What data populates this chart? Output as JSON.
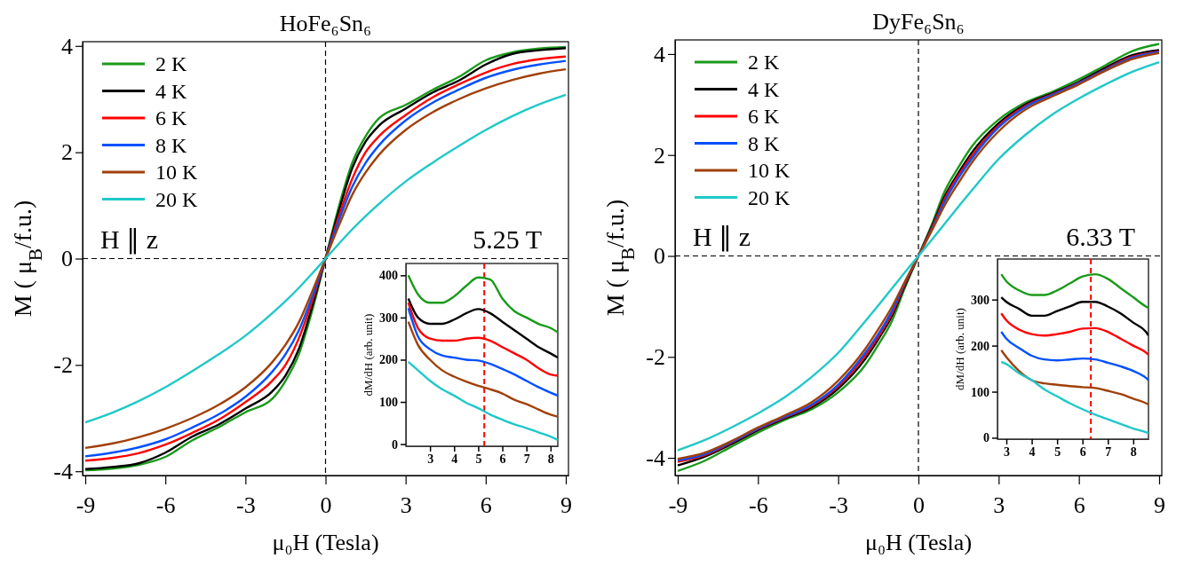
{
  "chart_data": [
    {
      "type": "line",
      "title": "HoFe₆Sn₆",
      "xlabel": "μ₀H (Tesla)",
      "ylabel": "M ( μ$_{B}$/f.u.)",
      "xlim": [
        -9.1,
        9.1
      ],
      "ylim": [
        -4.08,
        4.08
      ],
      "xticks": [
        -9,
        -6,
        -3,
        0,
        3,
        6,
        9
      ],
      "yticks": [
        -4,
        -2,
        0,
        2,
        4
      ],
      "legend": "top left",
      "annotations": [
        "H ∥ z",
        "5.25 T"
      ],
      "ref_lines": [
        {
          "axis": "x",
          "value": 0,
          "color": "#000000",
          "line_style": "dashed"
        },
        {
          "axis": "y",
          "value": 0,
          "color": "#000000",
          "line_style": "dashed"
        }
      ],
      "x": [
        -9,
        -8,
        -7,
        -6,
        -5,
        -4,
        -3,
        -2,
        -1.5,
        -1,
        -0.5,
        0,
        0.5,
        1,
        1.5,
        2,
        3,
        4,
        5,
        6,
        7,
        8,
        9
      ],
      "series": [
        {
          "name": "2 K",
          "color": "#1a9a1a",
          "values": [
            -3.98,
            -3.95,
            -3.88,
            -3.73,
            -3.42,
            -3.17,
            -2.89,
            -2.64,
            -2.3,
            -1.8,
            -0.98,
            0,
            0.98,
            1.8,
            2.3,
            2.64,
            2.89,
            3.17,
            3.42,
            3.73,
            3.88,
            3.95,
            3.98
          ]
        },
        {
          "name": "4 K",
          "color": "#000000",
          "values": [
            -3.96,
            -3.92,
            -3.85,
            -3.65,
            -3.35,
            -3.12,
            -2.82,
            -2.5,
            -2.2,
            -1.7,
            -0.9,
            0,
            0.9,
            1.7,
            2.2,
            2.5,
            2.82,
            3.12,
            3.35,
            3.65,
            3.85,
            3.92,
            3.96
          ]
        },
        {
          "name": "6 K",
          "color": "#ff0000",
          "values": [
            -3.8,
            -3.75,
            -3.66,
            -3.5,
            -3.28,
            -3.03,
            -2.7,
            -2.3,
            -2,
            -1.5,
            -0.8,
            0,
            0.8,
            1.5,
            2,
            2.3,
            2.7,
            3.03,
            3.28,
            3.5,
            3.66,
            3.75,
            3.8
          ]
        },
        {
          "name": "8 K",
          "color": "#0050ff",
          "values": [
            -3.72,
            -3.65,
            -3.55,
            -3.4,
            -3.18,
            -2.93,
            -2.6,
            -2.13,
            -1.8,
            -1.35,
            -0.72,
            0,
            0.72,
            1.35,
            1.8,
            2.13,
            2.6,
            2.93,
            3.18,
            3.4,
            3.55,
            3.65,
            3.72
          ]
        },
        {
          "name": "10 K",
          "color": "#a0400a",
          "values": [
            -3.56,
            -3.48,
            -3.36,
            -3.2,
            -3,
            -2.75,
            -2.42,
            -1.95,
            -1.62,
            -1.2,
            -0.62,
            0,
            0.62,
            1.2,
            1.62,
            1.95,
            2.42,
            2.75,
            3,
            3.2,
            3.36,
            3.48,
            3.56
          ]
        },
        {
          "name": "20 K",
          "color": "#20c8c8",
          "values": [
            -3.08,
            -2.9,
            -2.68,
            -2.42,
            -2.12,
            -1.8,
            -1.45,
            -1.03,
            -0.8,
            -0.55,
            -0.28,
            0,
            0.28,
            0.55,
            0.8,
            1.03,
            1.45,
            1.8,
            2.12,
            2.42,
            2.68,
            2.9,
            3.08
          ]
        }
      ]
    },
    {
      "type": "line",
      "ylabel": "dM/dH (arb. unit)",
      "xlim": [
        2,
        8.3
      ],
      "ylim": [
        -5,
        428
      ],
      "xticks": [
        3,
        4,
        5,
        6,
        7,
        8
      ],
      "yticks": [
        0,
        100,
        200,
        300,
        400
      ],
      "ref_lines": [
        {
          "axis": "x",
          "value": 5.25,
          "color": "#ff0000",
          "line_style": "dashed"
        }
      ],
      "x": [
        2.1,
        2.5,
        3,
        3.5,
        4,
        4.5,
        5,
        5.5,
        6,
        6.5,
        7,
        7.5,
        8,
        8.3
      ],
      "series": [
        {
          "color": "#1a9a1a",
          "values": [
            400,
            355,
            335,
            335,
            350,
            375,
            395,
            390,
            345,
            315,
            300,
            285,
            275,
            265
          ]
        },
        {
          "color": "#000000",
          "values": [
            345,
            300,
            285,
            285,
            295,
            310,
            320,
            310,
            290,
            270,
            250,
            230,
            215,
            205
          ]
        },
        {
          "color": "#ff0000",
          "values": [
            335,
            275,
            250,
            245,
            245,
            250,
            252,
            245,
            230,
            215,
            200,
            180,
            165,
            162
          ]
        },
        {
          "color": "#0050ff",
          "values": [
            322,
            255,
            225,
            210,
            205,
            200,
            198,
            190,
            178,
            165,
            150,
            135,
            122,
            115
          ]
        },
        {
          "color": "#a0400a",
          "values": [
            290,
            235,
            200,
            175,
            160,
            148,
            138,
            130,
            120,
            105,
            95,
            82,
            70,
            65
          ]
        },
        {
          "color": "#20c8c8",
          "values": [
            195,
            175,
            150,
            130,
            115,
            98,
            85,
            70,
            58,
            47,
            38,
            28,
            18,
            10
          ]
        }
      ]
    },
    {
      "type": "line",
      "title": "DyFe₆Sn₆",
      "xlabel": "μ₀H (Tesla)",
      "ylabel": "M ( μ$_{B}$/f.u.)",
      "xlim": [
        -9.1,
        9.1
      ],
      "ylim": [
        -4.35,
        4.28
      ],
      "xticks": [
        -9,
        -6,
        -3,
        0,
        3,
        6,
        9
      ],
      "yticks": [
        -4,
        -2,
        0,
        2,
        4
      ],
      "legend": "top left",
      "annotations": [
        "H ∥ z",
        "6.33 T"
      ],
      "ref_lines": [
        {
          "axis": "x",
          "value": 0,
          "color": "#000000",
          "line_style": "dashed"
        },
        {
          "axis": "y",
          "value": 0,
          "color": "#000000",
          "line_style": "dashed"
        }
      ],
      "x": [
        -9,
        -8,
        -7,
        -6,
        -5,
        -4,
        -3,
        -2,
        -1.5,
        -1,
        -0.5,
        0,
        0.5,
        1,
        1.5,
        2,
        3,
        4,
        5,
        6,
        7,
        8,
        9
      ],
      "series": [
        {
          "name": "2 K",
          "color": "#1a9a1a",
          "values": [
            -4.26,
            -4.06,
            -3.78,
            -3.5,
            -3.25,
            -3.04,
            -2.7,
            -2.17,
            -1.76,
            -1.3,
            -0.62,
            0,
            0.62,
            1.3,
            1.76,
            2.17,
            2.7,
            3.04,
            3.25,
            3.5,
            3.78,
            4.06,
            4.2
          ]
        },
        {
          "name": "4 K",
          "color": "#000000",
          "values": [
            -4.15,
            -3.98,
            -3.73,
            -3.45,
            -3.22,
            -3,
            -2.63,
            -2.05,
            -1.65,
            -1.2,
            -0.58,
            0,
            0.58,
            1.2,
            1.65,
            2.05,
            2.63,
            3,
            3.22,
            3.45,
            3.73,
            3.98,
            4.08
          ]
        },
        {
          "name": "6 K",
          "color": "#ff0000",
          "values": [
            -4.08,
            -3.95,
            -3.7,
            -3.43,
            -3.2,
            -2.97,
            -2.58,
            -1.98,
            -1.6,
            -1.15,
            -0.55,
            0,
            0.55,
            1.15,
            1.6,
            1.98,
            2.58,
            2.97,
            3.2,
            3.43,
            3.7,
            3.95,
            4.05
          ]
        },
        {
          "name": "8 K",
          "color": "#0050ff",
          "values": [
            -4.05,
            -3.93,
            -3.69,
            -3.42,
            -3.19,
            -2.95,
            -2.55,
            -1.93,
            -1.55,
            -1.1,
            -0.52,
            0,
            0.52,
            1.1,
            1.55,
            1.93,
            2.55,
            2.95,
            3.19,
            3.42,
            3.69,
            3.93,
            4.04
          ]
        },
        {
          "name": "10 K",
          "color": "#a0400a",
          "values": [
            -4.02,
            -3.9,
            -3.67,
            -3.4,
            -3.16,
            -2.9,
            -2.47,
            -1.85,
            -1.45,
            -1.02,
            -0.5,
            0,
            0.5,
            1.02,
            1.45,
            1.85,
            2.47,
            2.9,
            3.16,
            3.4,
            3.67,
            3.9,
            4.02
          ]
        },
        {
          "name": "20 K",
          "color": "#20c8c8",
          "values": [
            -3.85,
            -3.65,
            -3.4,
            -3.12,
            -2.8,
            -2.4,
            -1.92,
            -1.3,
            -0.98,
            -0.65,
            -0.32,
            0,
            0.32,
            0.65,
            0.98,
            1.3,
            1.92,
            2.4,
            2.8,
            3.12,
            3.4,
            3.65,
            3.84
          ]
        }
      ]
    },
    {
      "type": "line",
      "ylabel": "dM/dH (arb. unit)",
      "xlim": [
        2.65,
        8.6
      ],
      "ylim": [
        -3,
        388
      ],
      "xticks": [
        3,
        4,
        5,
        6,
        7,
        8
      ],
      "yticks": [
        0,
        100,
        200,
        300
      ],
      "ref_lines": [
        {
          "axis": "x",
          "value": 6.33,
          "color": "#ff0000",
          "line_style": "dashed"
        }
      ],
      "x": [
        2.8,
        3,
        3.5,
        4,
        4.5,
        5,
        5.5,
        6,
        6.5,
        7,
        7.5,
        8,
        8.5,
        8.6
      ],
      "series": [
        {
          "color": "#1a9a1a",
          "values": [
            355,
            340,
            320,
            310,
            310,
            320,
            335,
            350,
            355,
            345,
            325,
            305,
            285,
            282
          ]
        },
        {
          "color": "#000000",
          "values": [
            305,
            295,
            280,
            265,
            265,
            275,
            285,
            295,
            295,
            285,
            270,
            250,
            230,
            222
          ]
        },
        {
          "color": "#ff0000",
          "values": [
            270,
            255,
            235,
            225,
            222,
            225,
            230,
            237,
            238,
            230,
            215,
            200,
            185,
            180
          ]
        },
        {
          "color": "#0050ff",
          "values": [
            230,
            215,
            195,
            178,
            170,
            168,
            170,
            172,
            170,
            163,
            155,
            145,
            130,
            125
          ]
        },
        {
          "color": "#a0400a",
          "values": [
            190,
            175,
            145,
            125,
            118,
            115,
            112,
            110,
            108,
            102,
            95,
            85,
            75,
            72
          ]
        },
        {
          "color": "#20c8c8",
          "values": [
            165,
            160,
            140,
            125,
            105,
            90,
            75,
            62,
            50,
            40,
            30,
            20,
            12,
            10
          ]
        }
      ]
    }
  ]
}
